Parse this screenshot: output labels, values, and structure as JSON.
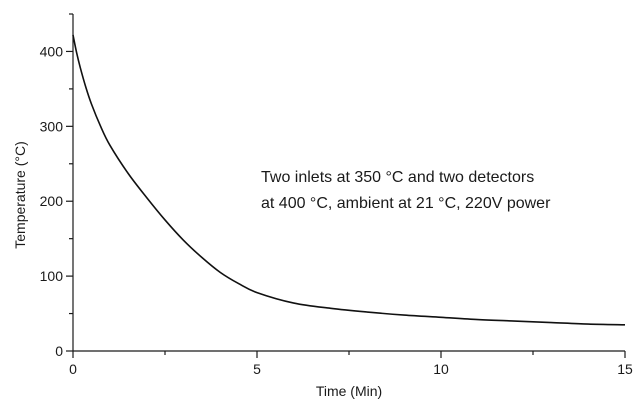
{
  "chart_data": {
    "type": "line",
    "title": "",
    "xlabel": "Time (Min)",
    "ylabel": "Temperature (°C)",
    "xlim": [
      0,
      15
    ],
    "ylim": [
      0,
      450
    ],
    "x_ticks": [
      0,
      5,
      10,
      15
    ],
    "y_ticks": [
      0,
      100,
      200,
      300,
      400
    ],
    "x_tick_labels": [
      "0",
      "5",
      "10",
      "15"
    ],
    "y_tick_labels": [
      "0",
      "100",
      "200",
      "300",
      "400"
    ],
    "grid": false,
    "legend": "none",
    "annotation": {
      "line1": "Two inlets at 350 °C and two detectors",
      "line2": "at 400 °C, ambient at 21 °C, 220V power"
    },
    "series": [
      {
        "color": "#111111",
        "x": [
          0,
          0.1,
          0.2,
          0.35,
          0.5,
          0.75,
          1.0,
          1.5,
          2.0,
          2.5,
          3.0,
          3.5,
          4.0,
          4.5,
          5.0,
          6.0,
          7.0,
          8.0,
          9.0,
          10.0,
          11.0,
          12.0,
          13.0,
          14.0,
          15.0
        ],
        "y": [
          422,
          398,
          378,
          352,
          330,
          300,
          275,
          237,
          205,
          175,
          148,
          125,
          105,
          90,
          78,
          64,
          57,
          52,
          48,
          45,
          42,
          40,
          38,
          36,
          35
        ]
      }
    ]
  }
}
